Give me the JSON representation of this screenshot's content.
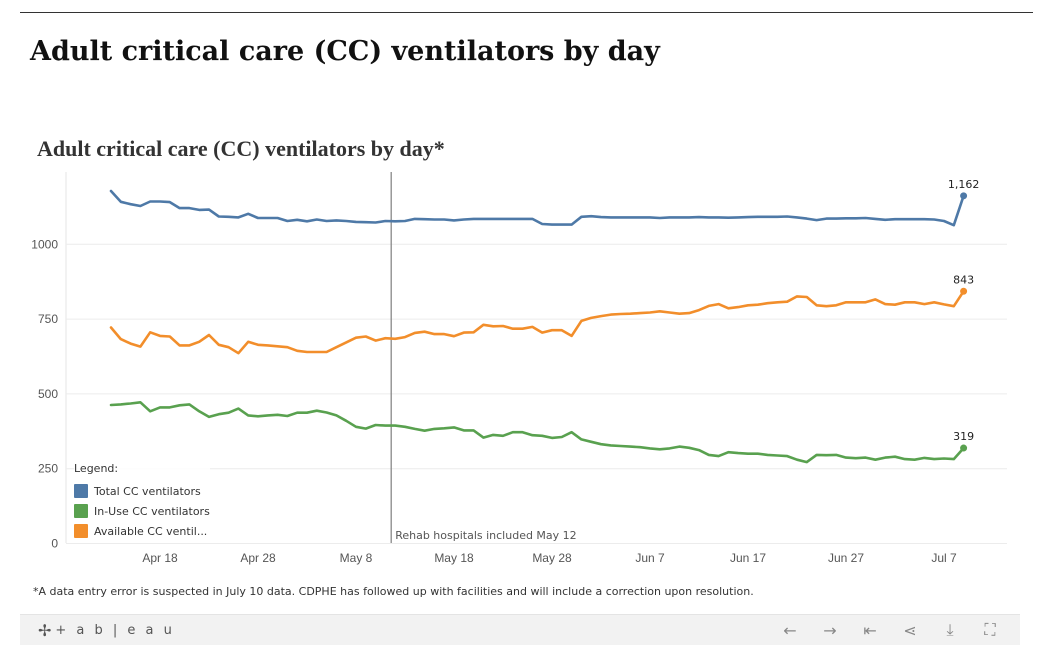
{
  "page_title": "Adult critical care (CC) ventilators by day",
  "chart_title": "Adult critical care (CC) ventilators by day*",
  "legend": {
    "title": "Legend:",
    "items": [
      {
        "label": "Total CC ventilators",
        "color": "#4e79a7"
      },
      {
        "label": "In-Use CC ventilators",
        "color": "#59a14f"
      },
      {
        "label": "Available CC ventil...",
        "color": "#f28e2b"
      }
    ]
  },
  "annotation": {
    "label": "Rehab hospitals included May 12",
    "date": "May 12"
  },
  "footnote": "*A data entry error is suspected in July 10 data. CDPHE has followed up with facilities and will include a correction upon resolution.",
  "toolbar": {
    "logo_text": "+ a b | e a u",
    "icons": [
      "undo-icon",
      "redo-icon",
      "revert-icon",
      "share-icon",
      "download-icon",
      "fullscreen-icon"
    ]
  },
  "chart_data": {
    "type": "line",
    "title": "Adult critical care (CC) ventilators by day*",
    "xlabel": "",
    "ylabel": "",
    "start_date": "2020-04-13",
    "ylim": [
      0,
      1250
    ],
    "yticks": [
      0,
      250,
      500,
      750,
      1000
    ],
    "ytick_labels": [
      "0",
      "250",
      "500",
      "750",
      "1000"
    ],
    "xticks": [
      "Apr 18",
      "Apr 28",
      "May 8",
      "May 18",
      "May 28",
      "Jun 7",
      "Jun 17",
      "Jun 27",
      "Jul 7"
    ],
    "xtick_offsets": [
      5,
      15,
      25,
      35,
      45,
      55,
      65,
      75,
      85
    ],
    "grid": true,
    "series": [
      {
        "name": "Total CC ventilators",
        "color": "#4e79a7",
        "end_label": "1,162",
        "values": [
          1178,
          1142,
          1134,
          1128,
          1143,
          1143,
          1141,
          1121,
          1121,
          1115,
          1116,
          1093,
          1092,
          1090,
          1102,
          1088,
          1088,
          1088,
          1078,
          1082,
          1077,
          1083,
          1078,
          1080,
          1078,
          1075,
          1074,
          1073,
          1078,
          1077,
          1078,
          1085,
          1084,
          1083,
          1083,
          1080,
          1083,
          1085,
          1085,
          1085,
          1085,
          1085,
          1085,
          1085,
          1068,
          1066,
          1066,
          1066,
          1092,
          1094,
          1091,
          1090,
          1090,
          1090,
          1090,
          1090,
          1088,
          1090,
          1090,
          1090,
          1091,
          1090,
          1090,
          1089,
          1090,
          1091,
          1092,
          1092,
          1092,
          1093,
          1090,
          1086,
          1081,
          1086,
          1086,
          1087,
          1087,
          1088,
          1085,
          1082,
          1084,
          1084,
          1084,
          1084,
          1083,
          1078,
          1064,
          1162
        ]
      },
      {
        "name": "In-Use CC ventilators",
        "color": "#59a14f",
        "end_label": "319",
        "values": [
          463,
          465,
          468,
          472,
          442,
          455,
          455,
          462,
          465,
          442,
          423,
          432,
          437,
          451,
          428,
          425,
          428,
          430,
          426,
          437,
          437,
          444,
          438,
          428,
          410,
          390,
          384,
          396,
          394,
          394,
          390,
          383,
          377,
          383,
          385,
          388,
          378,
          378,
          354,
          363,
          360,
          372,
          372,
          362,
          360,
          353,
          356,
          372,
          348,
          340,
          332,
          328,
          326,
          324,
          322,
          318,
          315,
          318,
          324,
          320,
          312,
          296,
          292,
          305,
          302,
          300,
          300,
          296,
          294,
          292,
          280,
          272,
          296,
          295,
          296,
          287,
          285,
          287,
          280,
          287,
          290,
          282,
          280,
          286,
          282,
          284,
          282,
          319
        ]
      },
      {
        "name": "Available CC ventil...",
        "color": "#f28e2b",
        "end_label": "843",
        "values": [
          722,
          683,
          668,
          658,
          706,
          694,
          692,
          662,
          662,
          674,
          697,
          664,
          656,
          636,
          674,
          664,
          662,
          659,
          656,
          644,
          640,
          640,
          640,
          656,
          672,
          688,
          692,
          678,
          686,
          684,
          690,
          704,
          708,
          700,
          700,
          693,
          705,
          706,
          731,
          726,
          727,
          718,
          718,
          724,
          705,
          713,
          713,
          694,
          744,
          754,
          760,
          765,
          767,
          768,
          770,
          772,
          776,
          772,
          768,
          770,
          780,
          794,
          800,
          786,
          790,
          796,
          798,
          803,
          806,
          808,
          826,
          824,
          796,
          793,
          796,
          806,
          806,
          806,
          816,
          800,
          798,
          806,
          806,
          800,
          806,
          799,
          793,
          843
        ]
      }
    ]
  }
}
